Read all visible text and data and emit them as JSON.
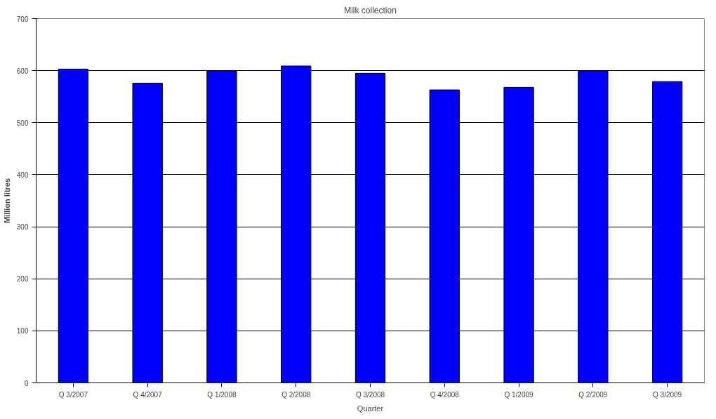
{
  "chart_data": {
    "type": "bar",
    "title": "Milk collection",
    "xlabel": "Quarter",
    "ylabel": "Million litres",
    "categories": [
      "Q 3/2007",
      "Q 4/2007",
      "Q 1/2008",
      "Q 2/2008",
      "Q 3/2008",
      "Q 4/2008",
      "Q 1/2009",
      "Q 2/2009",
      "Q 3/2009"
    ],
    "values": [
      603,
      576,
      600,
      609,
      595,
      563,
      568,
      600,
      579
    ],
    "color": "#0000ff",
    "ylim": [
      0,
      700
    ],
    "yticks": [
      0,
      100,
      200,
      300,
      400,
      500,
      600,
      700
    ],
    "grid": "y"
  }
}
